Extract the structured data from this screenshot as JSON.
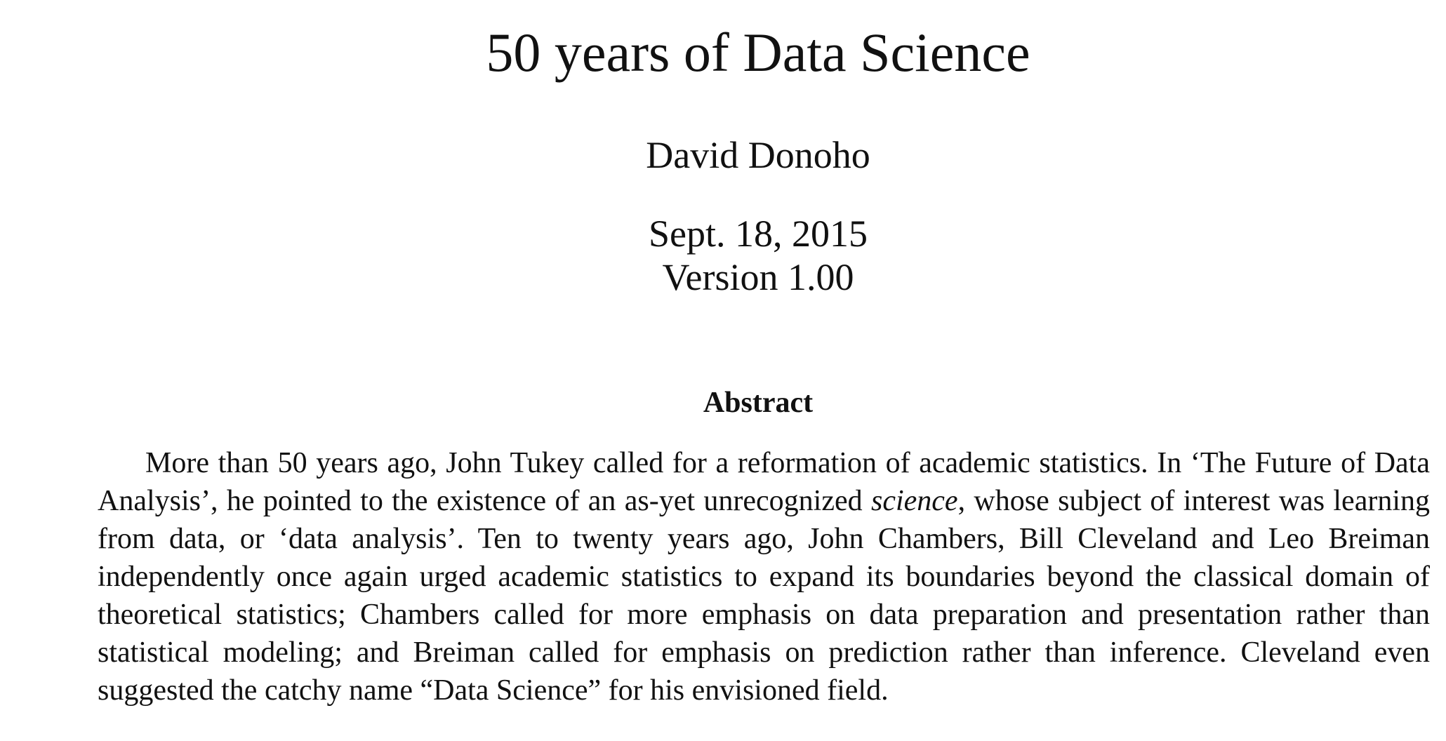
{
  "paper": {
    "title": "50 years of Data Science",
    "author": "David Donoho",
    "date": "Sept. 18, 2015",
    "version": "Version 1.00"
  },
  "abstract": {
    "heading": "Abstract",
    "text_before_italic": "More than 50 years ago, John Tukey called for a reformation of academic statistics. In ‘The Future of Data Analysis’, he pointed to the existence of an as-yet unrecognized ",
    "italic_word": "science",
    "text_after_italic": ", whose subject of interest was learning from data, or ‘data analysis’. Ten to twenty years ago, John Chambers, Bill Cleveland and Leo Breiman independently once again urged academic statistics to expand its boundaries beyond the classical domain of theoretical statistics; Chambers called for more emphasis on data preparation and presentation rather than statistical modeling; and Breiman called for emphasis on prediction rather than inference. Cleveland even suggested the catchy name “Data Science” for his envisioned field."
  }
}
